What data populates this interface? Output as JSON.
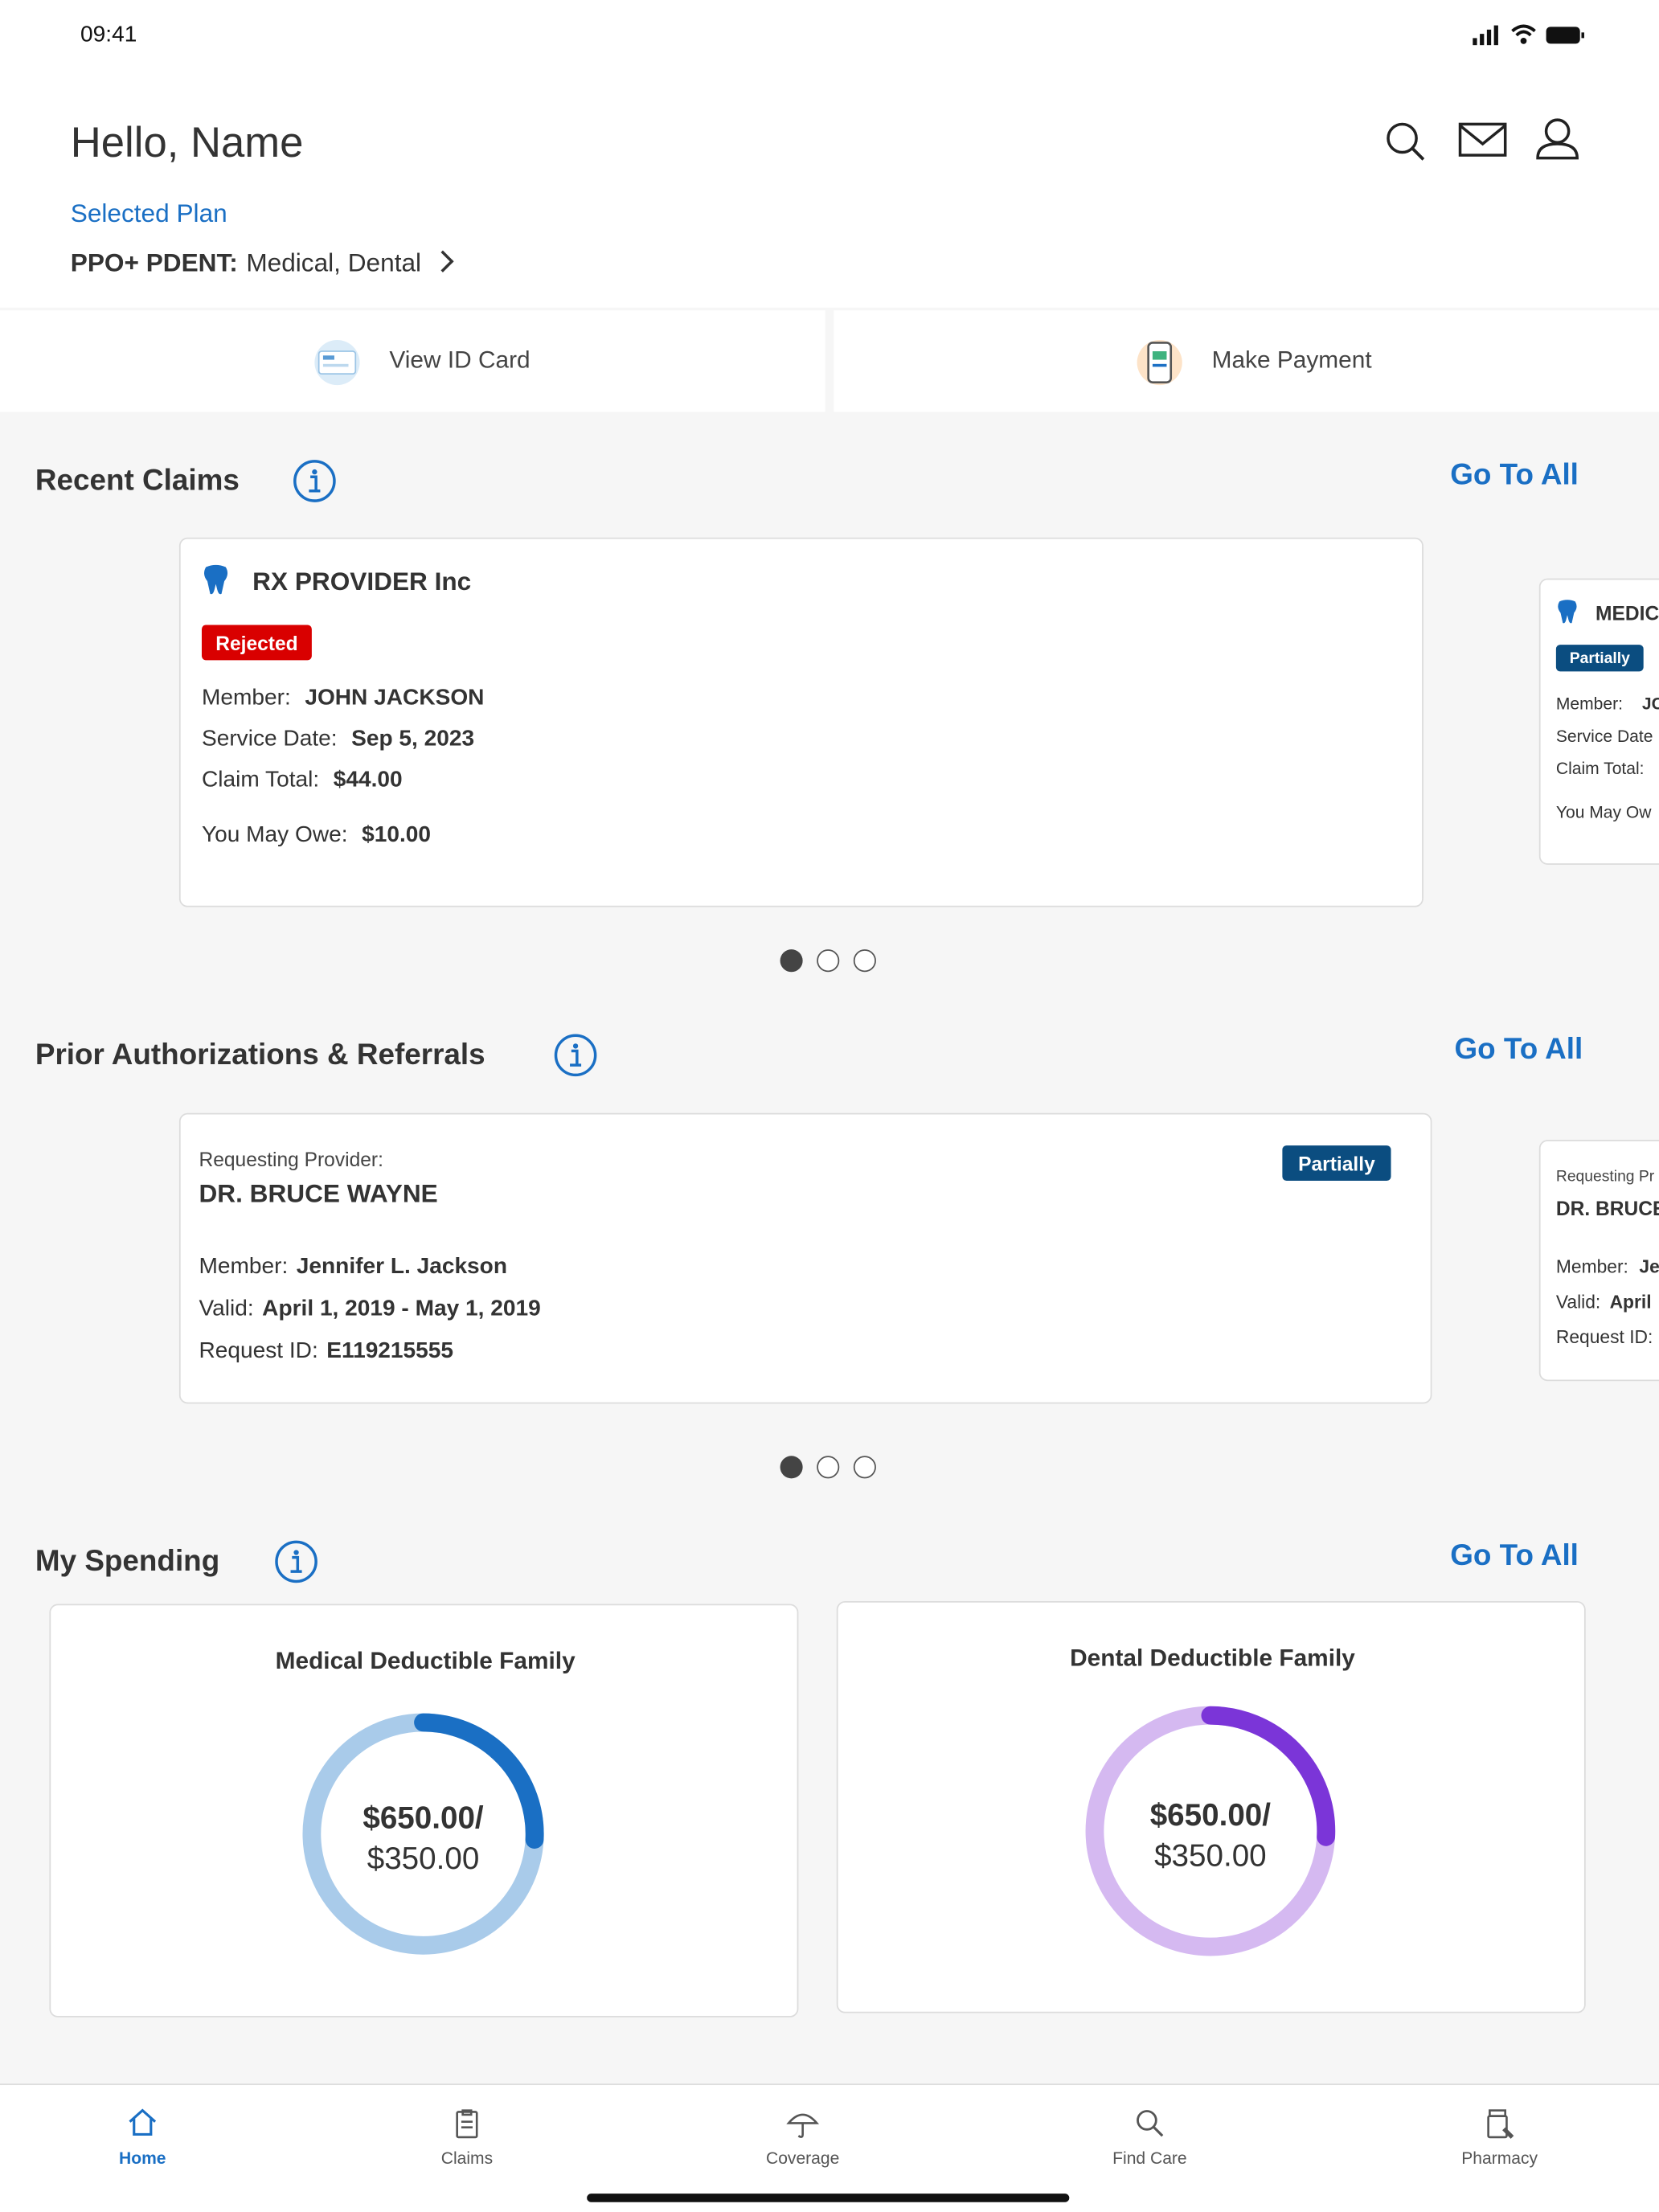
{
  "status_bar": {
    "time": "09:41"
  },
  "header": {
    "greeting": "Hello, Name",
    "plan_label": "Selected Plan",
    "plan_name": "PPO+ PDENT:",
    "plan_coverage": "Medical, Dental"
  },
  "quick_actions": [
    "View ID Card",
    "Make Payment"
  ],
  "recent_claims": {
    "title": "Recent Claims",
    "link": "Go To All",
    "card": {
      "provider": "RX PROVIDER Inc",
      "status": "Rejected",
      "fields": [
        {
          "label": "Member:",
          "value": "JOHN JACKSON"
        },
        {
          "label": "Service Date:",
          "value": "Sep 5, 2023"
        },
        {
          "label": "Claim Total:",
          "value": "$44.00"
        },
        {
          "label": "You May Owe:",
          "value": "$10.00"
        }
      ]
    },
    "peek": {
      "provider": "MEDIC",
      "status": "Partially",
      "lines": [
        "Member:",
        "JC",
        "Service Date",
        "Claim Total:",
        "You May Ow"
      ]
    }
  },
  "prior_auth": {
    "title": "Prior Authorizations & Referrals",
    "link": "Go To All",
    "card": {
      "requesting_label": "Requesting Provider:",
      "provider": "DR. BRUCE WAYNE",
      "status": "Partially",
      "fields": [
        {
          "label": "Member:",
          "value": "Jennifer L. Jackson"
        },
        {
          "label": "Valid:",
          "value": "April 1, 2019 - May 1, 2019"
        },
        {
          "label": "Request ID:",
          "value": "E119215555"
        }
      ]
    },
    "peek": {
      "requesting_label": "Requesting Pr",
      "provider": "DR. BRUCE",
      "lines": [
        "Member:",
        "Je",
        "Valid:",
        "April",
        "Request ID:"
      ]
    }
  },
  "spending": {
    "title": "My Spending",
    "link": "Go To All",
    "cards": [
      {
        "title": "Medical Deductible Family",
        "amount": "$650.00/",
        "limit": "$350.00"
      },
      {
        "title": "Dental Deductible Family",
        "amount": "$650.00/",
        "limit": "$350.00"
      }
    ]
  },
  "nav": [
    "Home",
    "Claims",
    "Coverage",
    "Find Care",
    "Pharmacy"
  ]
}
